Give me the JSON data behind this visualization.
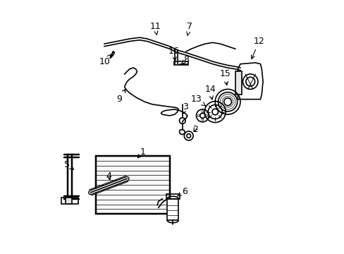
{
  "background_color": "#ffffff",
  "line_color": "#000000",
  "line_width": 1.2,
  "fig_width": 4.89,
  "fig_height": 3.6,
  "dpi": 100
}
